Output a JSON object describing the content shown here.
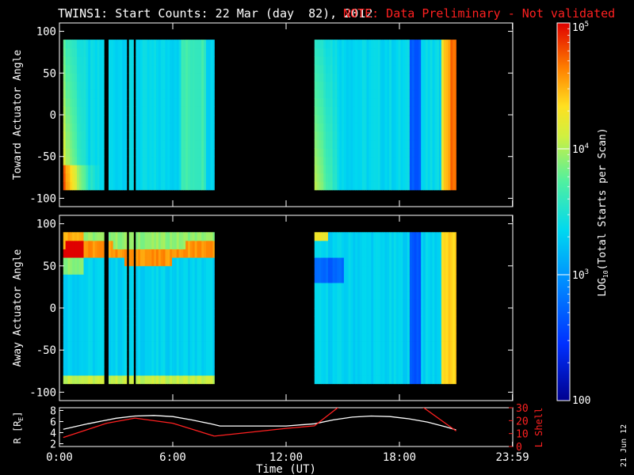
{
  "header": {
    "title": "TWINS1: Start Counts: 22 Mar (day  82), 2012",
    "note": "NOTE: Data Preliminary - Not validated",
    "note_color": "#ff2020"
  },
  "side_date": "21 Jun 12",
  "colorbar": {
    "label": "LOG10(Total Starts per Scan)",
    "label_main": "LOG",
    "label_sub": "10",
    "label_rest": "(Total Starts per Scan)",
    "scale": "log",
    "range": [
      100,
      100000
    ],
    "ticks": [
      {
        "value": 100000,
        "base": "10",
        "exp": "5"
      },
      {
        "value": 10000,
        "base": "10",
        "exp": "4"
      },
      {
        "value": 1000,
        "base": "10",
        "exp": "3"
      },
      {
        "value": 100,
        "base": "100",
        "exp": ""
      }
    ]
  },
  "chart_data": [
    {
      "type": "heatmap",
      "name": "toward",
      "title": "",
      "xlabel": "",
      "ylabel": "Toward Actuator Angle",
      "xlim": [
        0,
        24
      ],
      "ylim": [
        -110,
        110
      ],
      "yticks": [
        "100",
        "50",
        "0",
        "-50",
        "-100"
      ],
      "ytick_values": [
        100,
        50,
        0,
        -50,
        -100
      ],
      "angle_range": [
        -90,
        90
      ],
      "data_intervals": [
        [
          0.2,
          8.2
        ],
        [
          13.5,
          21.0
        ]
      ],
      "gaps": [
        [
          2.25,
          2.5
        ],
        [
          3.5,
          3.6
        ],
        [
          3.85,
          3.95
        ]
      ]
    },
    {
      "type": "heatmap",
      "name": "away",
      "title": "",
      "xlabel": "",
      "ylabel": "Away Actuator Angle",
      "xlim": [
        0,
        24
      ],
      "ylim": [
        -110,
        110
      ],
      "yticks": [
        "100",
        "50",
        "0",
        "-50",
        "-100"
      ],
      "ytick_values": [
        100,
        50,
        0,
        -50,
        -100
      ],
      "angle_range": [
        -90,
        90
      ],
      "data_intervals": [
        [
          0.2,
          8.2
        ],
        [
          13.5,
          21.0
        ]
      ],
      "gaps": [
        [
          2.25,
          2.5
        ],
        [
          3.5,
          3.6
        ],
        [
          3.85,
          3.95
        ]
      ]
    },
    {
      "type": "line",
      "name": "orbit",
      "xlabel": "Time (UT)",
      "ylabel_left": "R [RE]",
      "ylabel_left_main": "R [R",
      "ylabel_left_sub": "E",
      "ylabel_left_close": "]",
      "ylabel_right": "L Shell",
      "ylim_left": [
        1.5,
        8.5
      ],
      "ylim_right": [
        0,
        30
      ],
      "yticks_left": [
        "2",
        "4",
        "6",
        "8"
      ],
      "yticks_left_values": [
        2,
        4,
        6,
        8
      ],
      "yticks_right": [
        "0",
        "10",
        "20",
        "30"
      ],
      "yticks_right_values": [
        0,
        10,
        20,
        30
      ],
      "xlim": [
        0,
        24
      ],
      "xticks": [
        "0:00",
        "6:00",
        "12:00",
        "18:00",
        "23:59"
      ],
      "xtick_values": [
        0,
        6,
        12,
        18,
        23.983
      ],
      "series": [
        {
          "axis": "left",
          "color": "#ffffff",
          "x": [
            0.2,
            1.5,
            3,
            4,
            5,
            6,
            7,
            8,
            8.5,
            10,
            12,
            13.5,
            14.5,
            15.5,
            16.5,
            17.5,
            18.5,
            19.5,
            20.5,
            21.0
          ],
          "y": [
            4.6,
            5.6,
            6.6,
            7.0,
            7.1,
            6.9,
            6.3,
            5.6,
            5.2,
            5.2,
            5.2,
            5.6,
            6.3,
            6.8,
            7.0,
            6.9,
            6.5,
            5.9,
            5.0,
            4.5
          ]
        },
        {
          "axis": "right",
          "color": "#ff2020",
          "segments": [
            {
              "x": [
                0.2,
                2.5,
                4.0,
                6.0,
                8.2
              ],
              "y": [
                7,
                18,
                22,
                18,
                8
              ]
            },
            {
              "x": [
                8.2,
                12.0,
                13.5,
                15.0
              ],
              "y": [
                8,
                14,
                16,
                33
              ]
            },
            {
              "x": [
                19.0,
                21.0
              ],
              "y": [
                33,
                12
              ]
            }
          ]
        }
      ]
    }
  ]
}
